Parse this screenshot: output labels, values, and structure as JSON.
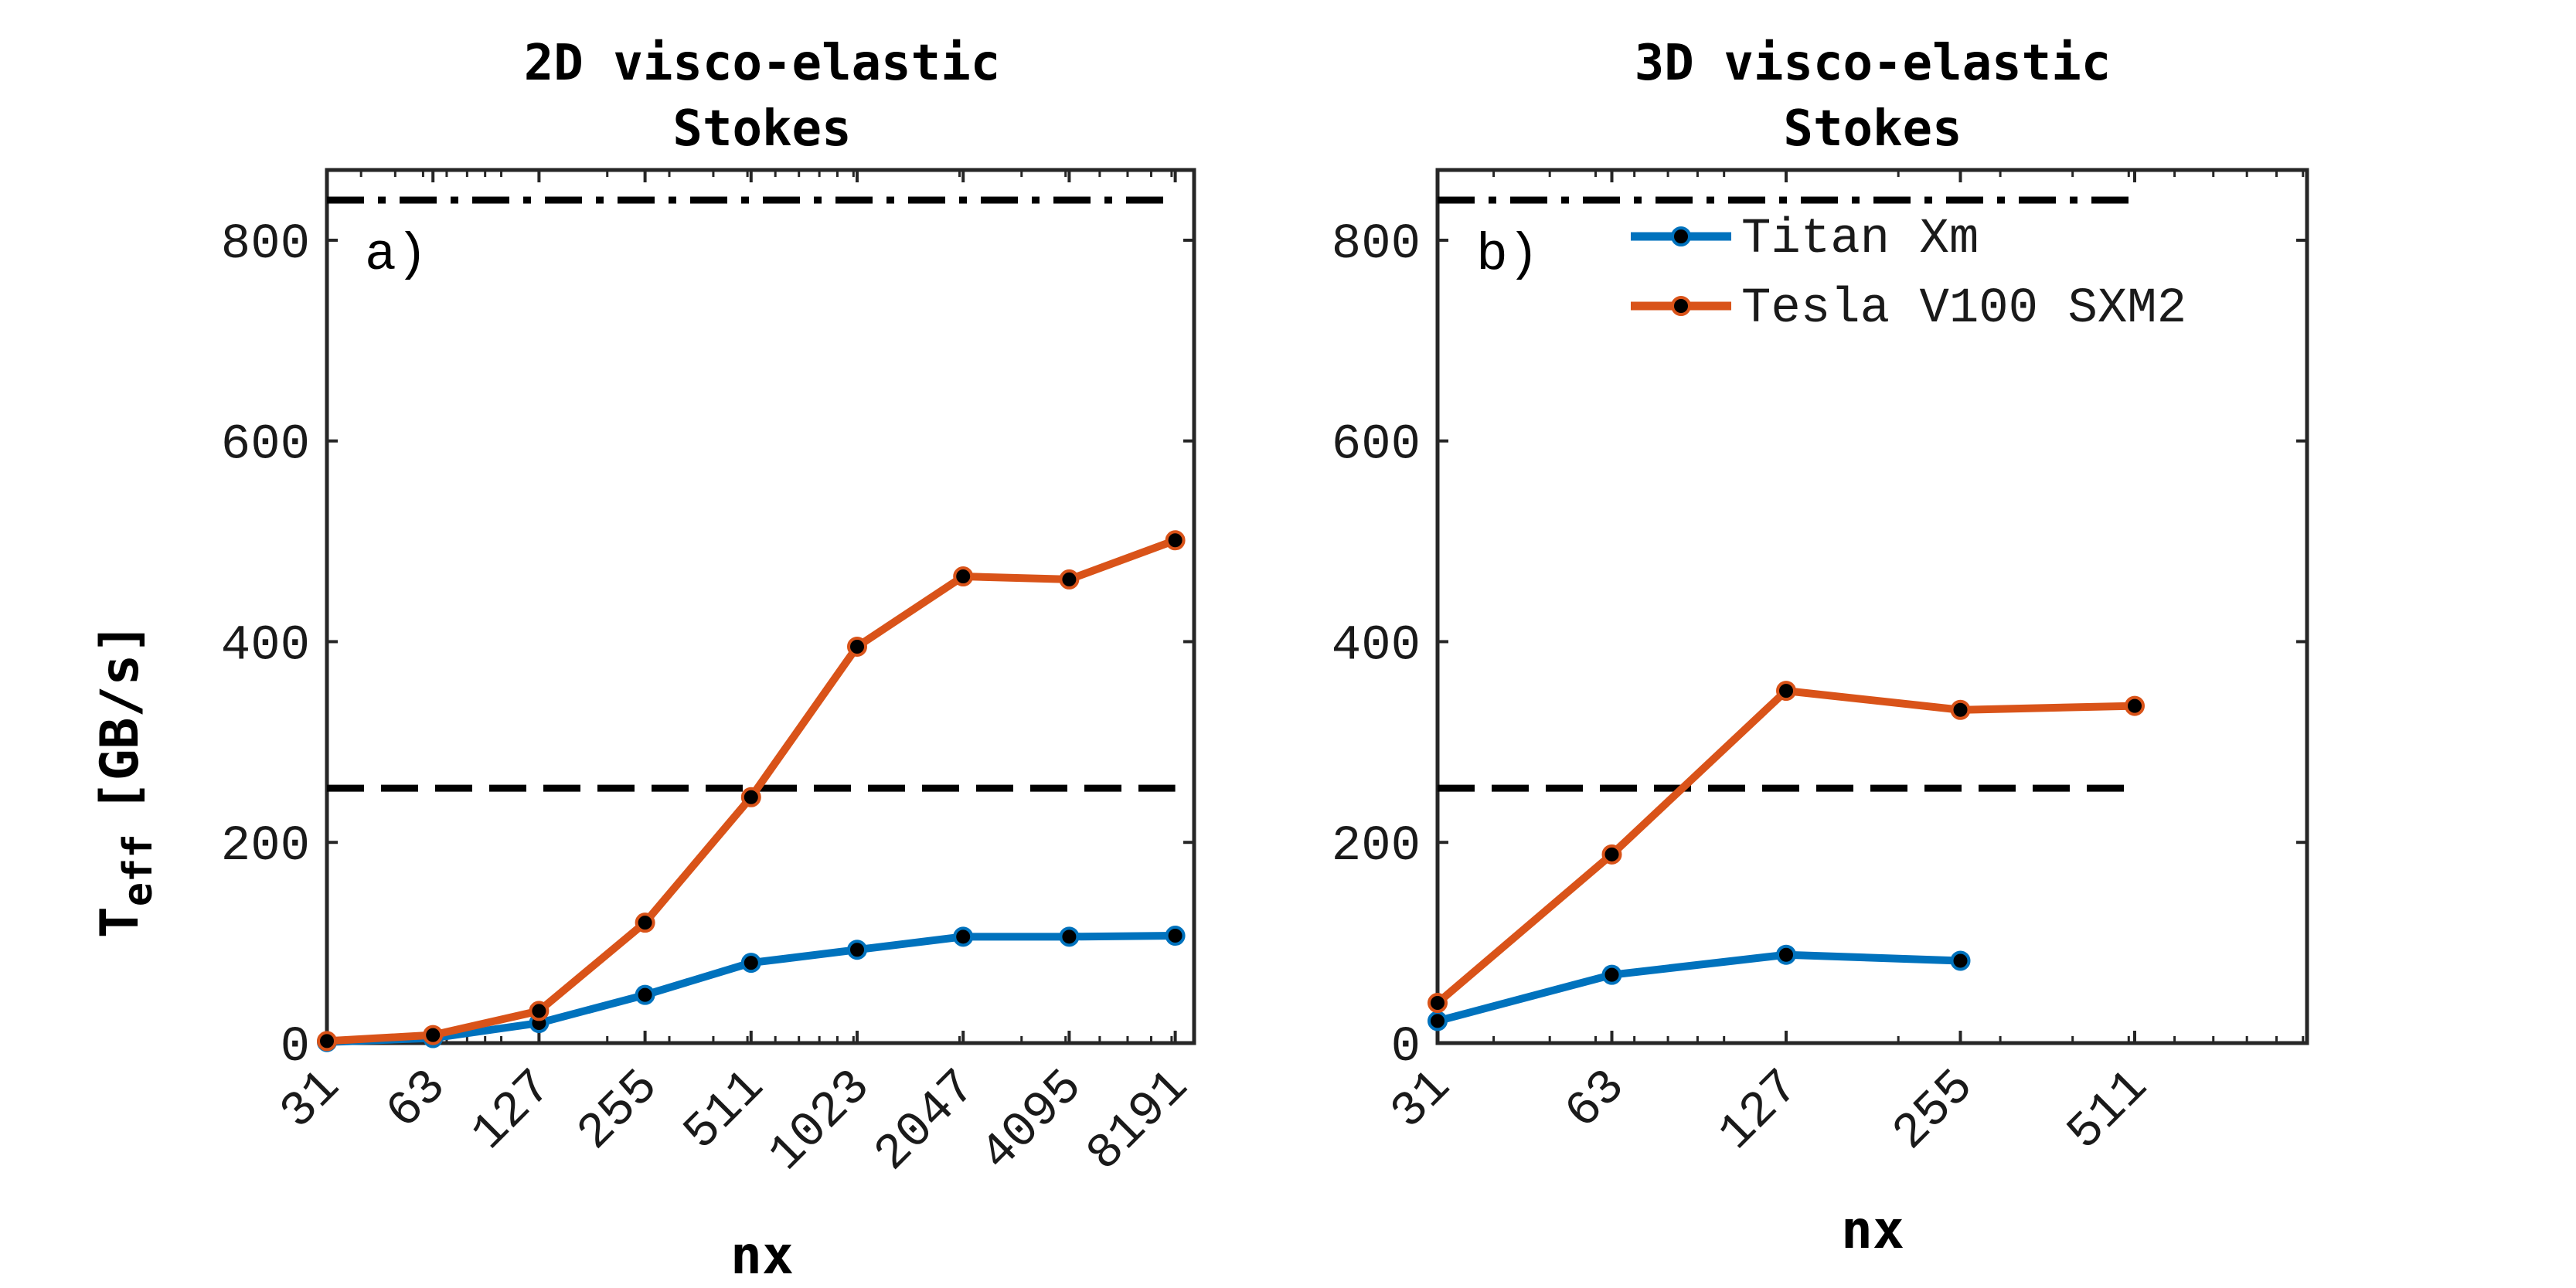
{
  "chart_data": [
    {
      "type": "line",
      "title_line1": "2D visco-elastic",
      "title_line2": "Stokes",
      "panel_label": "a)",
      "xlabel": "nx",
      "ylabel_main": "T",
      "ylabel_sub": "eff",
      "ylabel_unit": "[GB/s]",
      "x_categories": [
        "31",
        "63",
        "127",
        "255",
        "511",
        "1023",
        "2047",
        "4095",
        "8191"
      ],
      "x_scale": "log2",
      "ylim": [
        0,
        870
      ],
      "yticks": [
        0,
        200,
        400,
        600,
        800
      ],
      "grid": false,
      "reference_lines": [
        {
          "style": "dash-dot",
          "value": 840
        },
        {
          "style": "dashed",
          "value": 254
        }
      ],
      "series": [
        {
          "name": "Titan Xm",
          "color": "#0072BD",
          "x": [
            "31",
            "63",
            "127",
            "255",
            "511",
            "1023",
            "2047",
            "4095",
            "8191"
          ],
          "values": [
            1,
            5,
            20,
            48,
            80,
            93,
            106,
            106,
            107
          ]
        },
        {
          "name": "Tesla V100 SXM2",
          "color": "#D95319",
          "x": [
            "31",
            "63",
            "127",
            "255",
            "511",
            "1023",
            "2047",
            "4095",
            "8191"
          ],
          "values": [
            2,
            8,
            32,
            120,
            245,
            395,
            465,
            462,
            501
          ]
        }
      ]
    },
    {
      "type": "line",
      "title_line1": "3D visco-elastic",
      "title_line2": "Stokes",
      "panel_label": "b)",
      "xlabel": "nx",
      "x_categories": [
        "31",
        "63",
        "127",
        "255",
        "511"
      ],
      "x_scale": "log2",
      "ylim": [
        0,
        870
      ],
      "yticks": [
        0,
        200,
        400,
        600,
        800
      ],
      "grid": false,
      "legend_position": "top-right",
      "legend": [
        "Titan Xm",
        "Tesla V100 SXM2"
      ],
      "reference_lines": [
        {
          "style": "dash-dot",
          "value": 840
        },
        {
          "style": "dashed",
          "value": 254
        }
      ],
      "series": [
        {
          "name": "Titan Xm",
          "color": "#0072BD",
          "x": [
            "31",
            "63",
            "127",
            "255"
          ],
          "values": [
            22,
            68,
            88,
            82
          ]
        },
        {
          "name": "Tesla V100 SXM2",
          "color": "#D95319",
          "x": [
            "31",
            "63",
            "127",
            "255",
            "511"
          ],
          "values": [
            40,
            188,
            351,
            332,
            336
          ]
        }
      ]
    }
  ]
}
